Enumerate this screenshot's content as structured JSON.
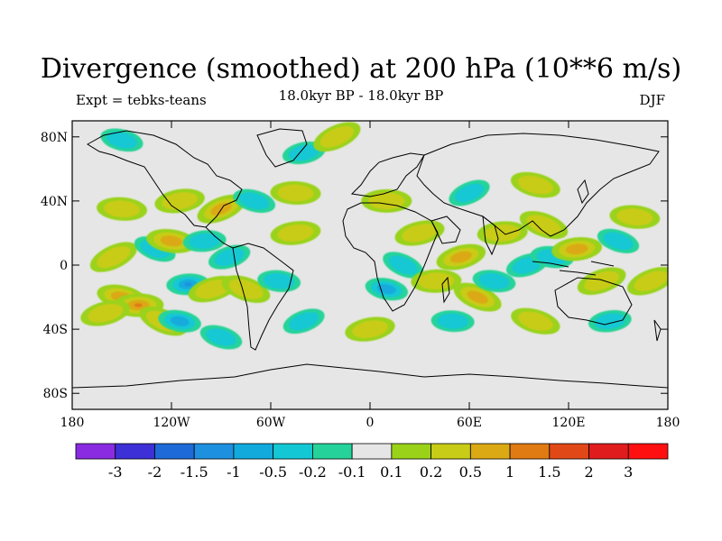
{
  "title": "Divergence (smoothed) at 200 hPa (10**6 m/s)",
  "subtitle": "18.0kyr BP - 18.0kyr BP",
  "left_label": "Expt = tebks-teans",
  "right_label": "DJF",
  "map": {
    "lat_ticks": [
      "80N",
      "40N",
      "0",
      "40S",
      "80S"
    ],
    "lat_values": [
      80,
      40,
      0,
      -40,
      -80
    ],
    "lon_ticks": [
      "180",
      "120W",
      "60W",
      "0",
      "60E",
      "120E",
      "180"
    ],
    "lon_values": [
      -180,
      -120,
      -60,
      0,
      60,
      120,
      180
    ],
    "background_color": "#e6e6e6"
  },
  "chart_data": {
    "type": "heatmap",
    "title": "Divergence (smoothed) at 200 hPa (10**6 m/s)",
    "subtitle": "18.0kyr BP - 18.0kyr BP",
    "xlabel": "",
    "ylabel": "",
    "xlim": [
      -180,
      180
    ],
    "ylim": [
      -90,
      90
    ],
    "colorbar": {
      "labels": [
        "-3",
        "-2",
        "-1.5",
        "-1",
        "-0.5",
        "-0.2",
        "-0.1",
        "0.1",
        "0.2",
        "0.5",
        "1",
        "1.5",
        "2",
        "3"
      ],
      "colors": [
        "#8a2be2",
        "#3c30d6",
        "#1e6ad8",
        "#1e90e0",
        "#12aadd",
        "#13c8d4",
        "#25d39a",
        "#e6e6e6",
        "#9ad21a",
        "#c8cc16",
        "#dba914",
        "#e07a12",
        "#e04818",
        "#e01c1c",
        "#ff1010"
      ]
    },
    "field_blobs": [
      {
        "lon": -155,
        "lat": 5,
        "level": 1
      },
      {
        "lon": -150,
        "lat": -20,
        "level": 2
      },
      {
        "lon": -140,
        "lat": -25,
        "level": 3
      },
      {
        "lon": -160,
        "lat": -30,
        "level": 1
      },
      {
        "lon": -125,
        "lat": -35,
        "level": 1
      },
      {
        "lon": -115,
        "lat": -35,
        "level": -2
      },
      {
        "lon": -110,
        "lat": -12,
        "level": -3
      },
      {
        "lon": -95,
        "lat": -15,
        "level": 1
      },
      {
        "lon": -130,
        "lat": 10,
        "level": -1
      },
      {
        "lon": -120,
        "lat": 15,
        "level": 2
      },
      {
        "lon": -100,
        "lat": 15,
        "level": -1
      },
      {
        "lon": -85,
        "lat": 5,
        "level": -1
      },
      {
        "lon": -75,
        "lat": -15,
        "level": 1
      },
      {
        "lon": -55,
        "lat": -10,
        "level": -1
      },
      {
        "lon": -45,
        "lat": 20,
        "level": 1
      },
      {
        "lon": -40,
        "lat": -35,
        "level": -1
      },
      {
        "lon": -90,
        "lat": -45,
        "level": -1
      },
      {
        "lon": -150,
        "lat": 35,
        "level": 1
      },
      {
        "lon": -115,
        "lat": 40,
        "level": 1
      },
      {
        "lon": -90,
        "lat": 35,
        "level": 2
      },
      {
        "lon": -70,
        "lat": 40,
        "level": -1
      },
      {
        "lon": -45,
        "lat": 45,
        "level": 1
      },
      {
        "lon": -40,
        "lat": 70,
        "level": -1
      },
      {
        "lon": -20,
        "lat": 80,
        "level": 1
      },
      {
        "lon": -150,
        "lat": 78,
        "level": -1
      },
      {
        "lon": 10,
        "lat": 40,
        "level": 1
      },
      {
        "lon": 30,
        "lat": 20,
        "level": 1
      },
      {
        "lon": 20,
        "lat": 0,
        "level": -1
      },
      {
        "lon": 10,
        "lat": -15,
        "level": -2
      },
      {
        "lon": 40,
        "lat": -10,
        "level": 1
      },
      {
        "lon": 55,
        "lat": 5,
        "level": 2
      },
      {
        "lon": 65,
        "lat": -20,
        "level": 2
      },
      {
        "lon": 75,
        "lat": -10,
        "level": -1
      },
      {
        "lon": 80,
        "lat": 20,
        "level": 1
      },
      {
        "lon": 95,
        "lat": 0,
        "level": -1
      },
      {
        "lon": 105,
        "lat": 25,
        "level": 1
      },
      {
        "lon": 110,
        "lat": 5,
        "level": -1
      },
      {
        "lon": 125,
        "lat": 10,
        "level": 2
      },
      {
        "lon": 140,
        "lat": -10,
        "level": 1
      },
      {
        "lon": 150,
        "lat": 15,
        "level": -1
      },
      {
        "lon": 160,
        "lat": 30,
        "level": 1
      },
      {
        "lon": 145,
        "lat": -35,
        "level": -1
      },
      {
        "lon": 170,
        "lat": -10,
        "level": 1
      },
      {
        "lon": 100,
        "lat": -35,
        "level": 1
      },
      {
        "lon": 50,
        "lat": -35,
        "level": -1
      },
      {
        "lon": 0,
        "lat": -40,
        "level": 1
      },
      {
        "lon": 60,
        "lat": 45,
        "level": -1
      },
      {
        "lon": 100,
        "lat": 50,
        "level": 1
      }
    ]
  }
}
